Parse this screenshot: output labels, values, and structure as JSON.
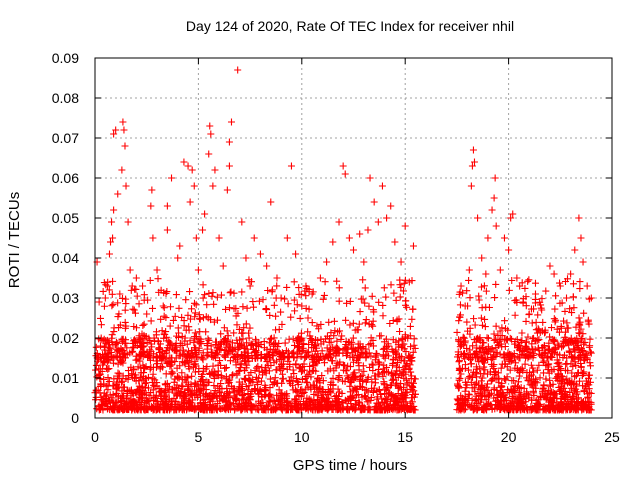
{
  "chart_data": {
    "type": "scatter",
    "title": "Day 124 of 2020, Rate Of TEC Index for receiver nhil",
    "xlabel": "GPS time / hours",
    "ylabel": "ROTI / TECUs",
    "xlim": [
      0,
      25
    ],
    "ylim": [
      0,
      0.09
    ],
    "x_ticks": [
      "0",
      "5",
      "10",
      "15",
      "20",
      "25"
    ],
    "y_ticks": [
      "0",
      "0.01",
      "0.02",
      "0.03",
      "0.04",
      "0.05",
      "0.06",
      "0.07",
      "0.08",
      "0.09"
    ],
    "grid": true,
    "marker": "plus",
    "color": "#ff0000",
    "data_gap_hours": [
      15.5,
      17.5
    ],
    "series": [
      {
        "points": [
          [
            0.1,
            0.039
          ],
          [
            0.2,
            0.029
          ],
          [
            0.3,
            0.02
          ],
          [
            0.5,
            0.03
          ],
          [
            0.6,
            0.033
          ],
          [
            0.7,
            0.041
          ],
          [
            0.75,
            0.044
          ],
          [
            0.8,
            0.049
          ],
          [
            0.85,
            0.045
          ],
          [
            0.9,
            0.052
          ],
          [
            0.9,
            0.071
          ],
          [
            1.0,
            0.072
          ],
          [
            1.1,
            0.056
          ],
          [
            1.2,
            0.031
          ],
          [
            1.3,
            0.062
          ],
          [
            1.35,
            0.074
          ],
          [
            1.4,
            0.072
          ],
          [
            1.45,
            0.068
          ],
          [
            1.5,
            0.058
          ],
          [
            1.6,
            0.049
          ],
          [
            1.7,
            0.037
          ],
          [
            1.8,
            0.033
          ],
          [
            1.9,
            0.027
          ],
          [
            2.0,
            0.035
          ],
          [
            2.3,
            0.033
          ],
          [
            2.5,
            0.026
          ],
          [
            2.7,
            0.053
          ],
          [
            2.75,
            0.057
          ],
          [
            2.8,
            0.045
          ],
          [
            3.0,
            0.037
          ],
          [
            3.3,
            0.028
          ],
          [
            3.5,
            0.047
          ],
          [
            3.5,
            0.053
          ],
          [
            3.7,
            0.06
          ],
          [
            4.0,
            0.04
          ],
          [
            4.1,
            0.043
          ],
          [
            4.3,
            0.064
          ],
          [
            4.5,
            0.063
          ],
          [
            4.6,
            0.054
          ],
          [
            4.7,
            0.062
          ],
          [
            4.8,
            0.058
          ],
          [
            4.9,
            0.045
          ],
          [
            5.0,
            0.037
          ],
          [
            5.2,
            0.047
          ],
          [
            5.3,
            0.051
          ],
          [
            5.5,
            0.066
          ],
          [
            5.55,
            0.073
          ],
          [
            5.6,
            0.071
          ],
          [
            5.7,
            0.058
          ],
          [
            5.8,
            0.062
          ],
          [
            6.0,
            0.045
          ],
          [
            6.2,
            0.038
          ],
          [
            6.4,
            0.057
          ],
          [
            6.5,
            0.063
          ],
          [
            6.5,
            0.069
          ],
          [
            6.6,
            0.074
          ],
          [
            6.9,
            0.087
          ],
          [
            7.1,
            0.049
          ],
          [
            7.3,
            0.04
          ],
          [
            7.5,
            0.033
          ],
          [
            7.7,
            0.045
          ],
          [
            8.0,
            0.041
          ],
          [
            8.3,
            0.038
          ],
          [
            8.5,
            0.054
          ],
          [
            8.8,
            0.035
          ],
          [
            9.0,
            0.03
          ],
          [
            9.3,
            0.045
          ],
          [
            9.5,
            0.063
          ],
          [
            9.7,
            0.041
          ],
          [
            10.0,
            0.028
          ],
          [
            10.3,
            0.025
          ],
          [
            10.5,
            0.031
          ],
          [
            10.9,
            0.035
          ],
          [
            11.2,
            0.039
          ],
          [
            11.5,
            0.044
          ],
          [
            11.8,
            0.049
          ],
          [
            12.0,
            0.063
          ],
          [
            12.1,
            0.061
          ],
          [
            12.3,
            0.045
          ],
          [
            12.5,
            0.042
          ],
          [
            12.8,
            0.046
          ],
          [
            13.0,
            0.039
          ],
          [
            13.2,
            0.047
          ],
          [
            13.3,
            0.06
          ],
          [
            13.5,
            0.054
          ],
          [
            13.7,
            0.049
          ],
          [
            13.9,
            0.058
          ],
          [
            14.1,
            0.05
          ],
          [
            14.3,
            0.053
          ],
          [
            14.5,
            0.044
          ],
          [
            14.8,
            0.039
          ],
          [
            15.0,
            0.048
          ],
          [
            15.2,
            0.034
          ],
          [
            15.4,
            0.043
          ],
          [
            17.7,
            0.033
          ],
          [
            17.9,
            0.028
          ],
          [
            18.1,
            0.037
          ],
          [
            18.2,
            0.058
          ],
          [
            18.25,
            0.063
          ],
          [
            18.3,
            0.067
          ],
          [
            18.35,
            0.064
          ],
          [
            18.5,
            0.05
          ],
          [
            18.7,
            0.04
          ],
          [
            18.9,
            0.036
          ],
          [
            19.0,
            0.045
          ],
          [
            19.2,
            0.052
          ],
          [
            19.3,
            0.055
          ],
          [
            19.35,
            0.06
          ],
          [
            19.4,
            0.048
          ],
          [
            19.6,
            0.037
          ],
          [
            19.8,
            0.045
          ],
          [
            20.0,
            0.042
          ],
          [
            20.1,
            0.05
          ],
          [
            20.2,
            0.051
          ],
          [
            20.4,
            0.035
          ],
          [
            20.7,
            0.029
          ],
          [
            21.0,
            0.026
          ],
          [
            21.3,
            0.031
          ],
          [
            21.6,
            0.027
          ],
          [
            22.0,
            0.038
          ],
          [
            22.2,
            0.036
          ],
          [
            22.5,
            0.033
          ],
          [
            22.8,
            0.03
          ],
          [
            23.0,
            0.036
          ],
          [
            23.2,
            0.042
          ],
          [
            23.4,
            0.05
          ],
          [
            23.5,
            0.045
          ],
          [
            23.6,
            0.039
          ],
          [
            23.8,
            0.033
          ],
          [
            24.0,
            0.03
          ]
        ],
        "background_clusters": [
          {
            "x_range": [
              0,
              15.5
            ],
            "y_range": [
              0.002,
              0.02
            ],
            "count": 1900
          },
          {
            "x_range": [
              0,
              15.5
            ],
            "y_range": [
              0.015,
              0.035
            ],
            "count": 550
          },
          {
            "x_range": [
              17.5,
              24
            ],
            "y_range": [
              0.002,
              0.02
            ],
            "count": 850
          },
          {
            "x_range": [
              17.5,
              24
            ],
            "y_range": [
              0.015,
              0.035
            ],
            "count": 260
          }
        ]
      }
    ]
  }
}
